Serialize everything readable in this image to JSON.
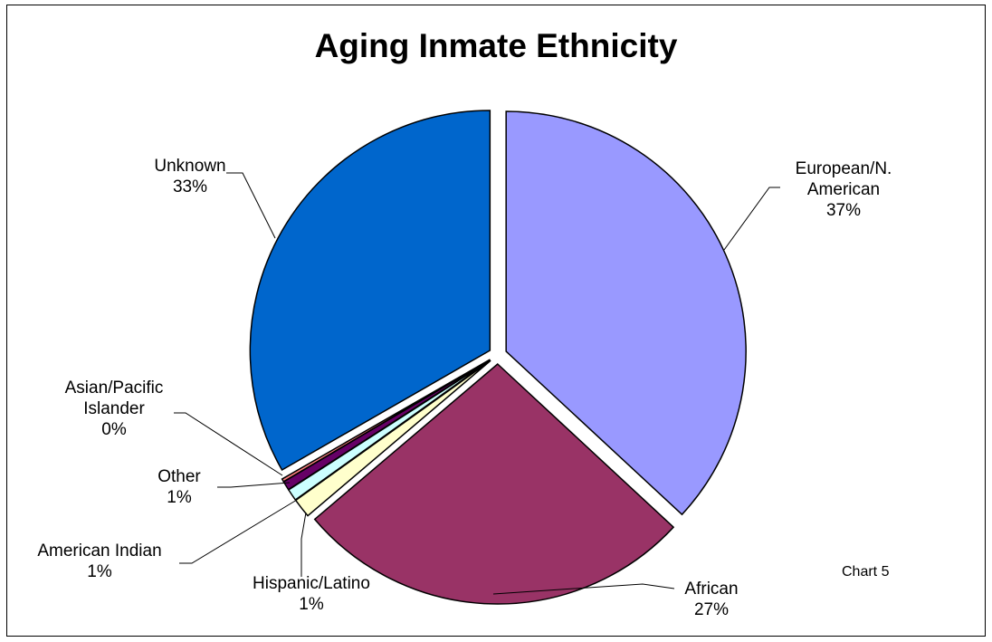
{
  "chart_data": {
    "type": "pie",
    "title": "Aging Inmate Ethnicity",
    "note": "Chart 5",
    "slices": [
      {
        "label_lines": [
          "European/N.",
          "American"
        ],
        "pct_label": "37%",
        "value": 36.9,
        "color": "#9999ff",
        "exploded": true
      },
      {
        "label_lines": [
          "African"
        ],
        "pct_label": "27%",
        "value": 26.9,
        "color": "#993366",
        "exploded": true
      },
      {
        "label_lines": [
          "Hispanic/Latino"
        ],
        "pct_label": "1%",
        "value": 1.3,
        "color": "#ffffcc",
        "exploded": true
      },
      {
        "label_lines": [
          "American Indian"
        ],
        "pct_label": "1%",
        "value": 0.8,
        "color": "#ccffff",
        "exploded": true
      },
      {
        "label_lines": [
          "Other"
        ],
        "pct_label": "1%",
        "value": 0.6,
        "color": "#660066",
        "exploded": true
      },
      {
        "label_lines": [
          "Asian/Pacific",
          "Islander"
        ],
        "pct_label": "0%",
        "value": 0.2,
        "color": "#ff8080",
        "exploded": true
      },
      {
        "label_lines": [
          "Unknown"
        ],
        "pct_label": "33%",
        "value": 33.3,
        "color": "#0066cc",
        "exploded": true
      }
    ]
  }
}
